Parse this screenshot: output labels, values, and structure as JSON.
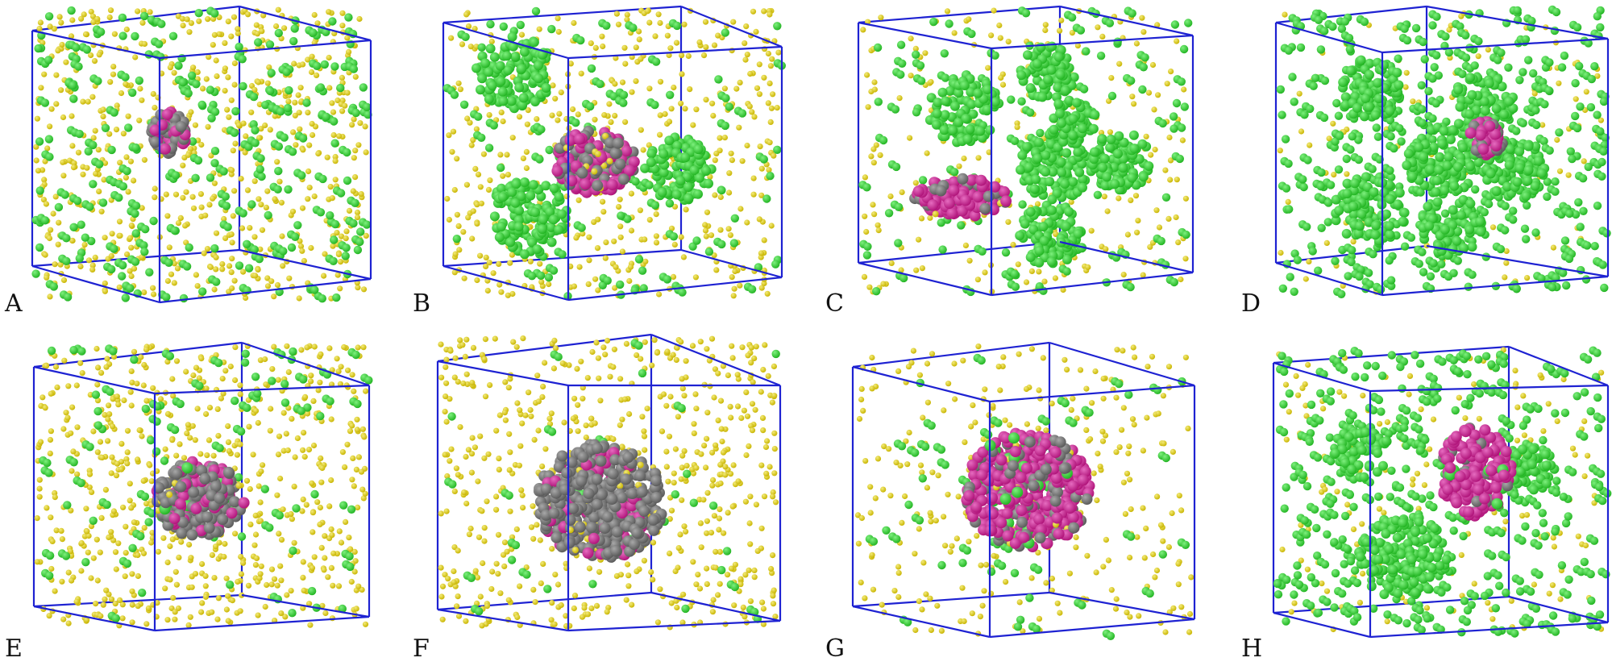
{
  "figure": {
    "colors": {
      "box_edge": "#1e22d2",
      "yellow_particle": "#c8b400",
      "green_particle": "#22b422",
      "magenta_particle": "#b0147a",
      "gray_particle": "#5a5a5a"
    },
    "panels": [
      {
        "label": "A",
        "green_clusters": "dispersed",
        "core": "small-mixed"
      },
      {
        "label": "B",
        "green_clusters": "few-large",
        "core": "medium-mixed"
      },
      {
        "label": "C",
        "green_clusters": "several-large",
        "core": "elongated-magenta"
      },
      {
        "label": "D",
        "green_clusters": "dense-network",
        "core": "small-mixed"
      },
      {
        "label": "E",
        "green_clusters": "sparse",
        "core": "medium-gray"
      },
      {
        "label": "F",
        "green_clusters": "rare",
        "core": "large-gray"
      },
      {
        "label": "G",
        "green_clusters": "rare",
        "core": "large-magenta"
      },
      {
        "label": "H",
        "green_clusters": "dense-network",
        "core": "medium-magenta"
      }
    ]
  }
}
